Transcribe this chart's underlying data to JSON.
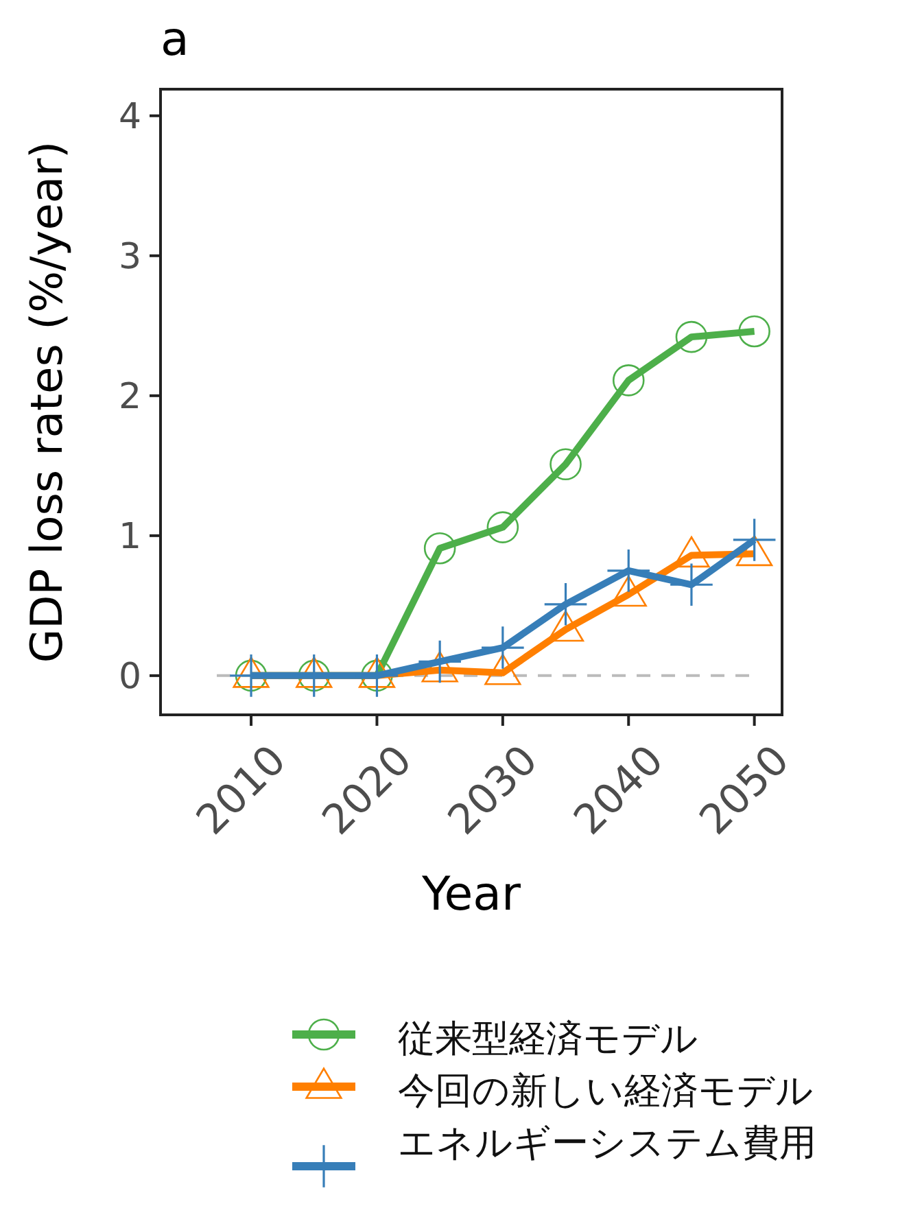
{
  "chart_data": {
    "type": "line",
    "title": "a",
    "xlabel": "Year",
    "ylabel": "GDP loss rates (%/year)",
    "x": [
      2010,
      2015,
      2020,
      2025,
      2030,
      2035,
      2040,
      2045,
      2050
    ],
    "xlim": [
      2002.8,
      2052.2
    ],
    "xticks": [
      2010,
      2020,
      2030,
      2040,
      2050
    ],
    "ylim": [
      -0.28,
      4.19
    ],
    "yticks": [
      0,
      1,
      2,
      3,
      4
    ],
    "series": [
      {
        "name": "従来型経済モデル",
        "color": "#4daf4a",
        "marker": "circle",
        "values": [
          0,
          0,
          0,
          0.91,
          1.06,
          1.51,
          2.11,
          2.42,
          2.46
        ]
      },
      {
        "name": "今回の新しい経済モデル",
        "color": "#ff7f00",
        "marker": "triangle",
        "values": [
          0,
          0,
          0,
          0.04,
          0.02,
          0.33,
          0.58,
          0.86,
          0.87
        ]
      },
      {
        "name": "エネルギーシステム費用",
        "color": "#377eb8",
        "marker": "cross",
        "values": [
          0,
          0,
          0,
          0.1,
          0.2,
          0.51,
          0.75,
          0.65,
          0.97
        ]
      }
    ],
    "ref_lines": [
      {
        "axis": "y",
        "value": 0,
        "color": "#bbbbbb",
        "line_style": "dashed"
      }
    ],
    "grid": false,
    "legend": "bottom"
  }
}
